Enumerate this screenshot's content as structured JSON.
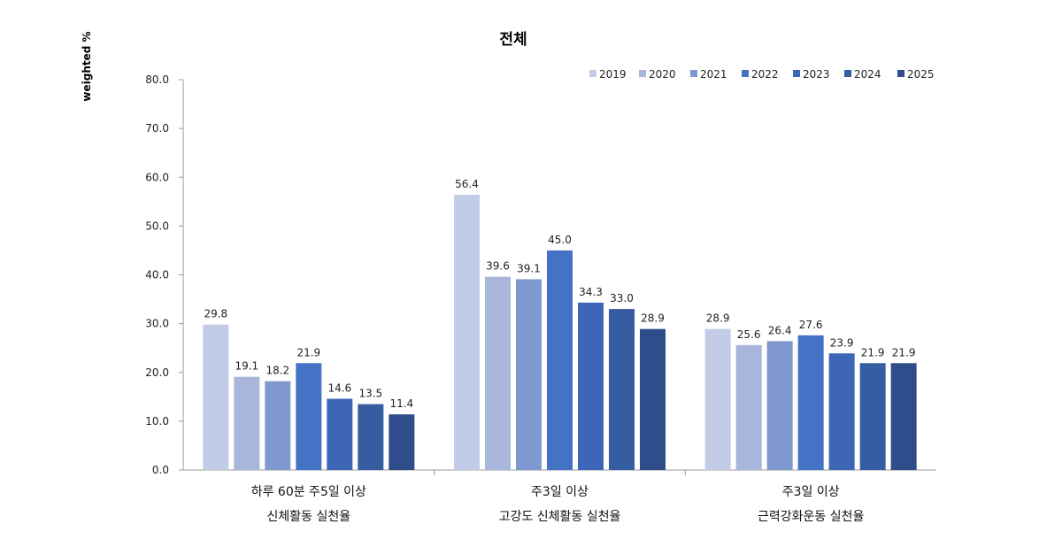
{
  "chart_data": {
    "type": "bar",
    "title": "전체",
    "ylabel": "weighted %",
    "xlabel": "",
    "ylim": [
      0,
      80
    ],
    "yticks": [
      "0.0",
      "10.0",
      "20.0",
      "30.0",
      "40.0",
      "50.0",
      "60.0",
      "70.0",
      "80.0"
    ],
    "grid": false,
    "legend_position": "top-right",
    "categories": [
      [
        "하루 60분 주5일 이상",
        "신체활동 실천율"
      ],
      [
        "주3일 이상",
        "고강도 신체활동 실천율"
      ],
      [
        "주3일 이상",
        "근력강화운동 실천율"
      ]
    ],
    "series": [
      {
        "name": "2019",
        "color": "#c3cce6",
        "values": [
          29.8,
          56.4,
          28.9
        ],
        "labels": [
          "29.8",
          "56.4",
          "28.9"
        ]
      },
      {
        "name": "2020",
        "color": "#a9b6db",
        "values": [
          19.1,
          39.6,
          25.6
        ],
        "labels": [
          "19.1",
          "39.6",
          "25.6"
        ]
      },
      {
        "name": "2021",
        "color": "#8098d0",
        "values": [
          18.2,
          39.1,
          26.4
        ],
        "labels": [
          "18.2",
          "39.1",
          "26.4"
        ]
      },
      {
        "name": "2022",
        "color": "#4472c4",
        "values": [
          21.9,
          45.0,
          27.6
        ],
        "labels": [
          "21.9",
          "45.0",
          "27.6"
        ]
      },
      {
        "name": "2023",
        "color": "#3d66b6",
        "values": [
          14.6,
          34.3,
          23.9
        ],
        "labels": [
          "14.6",
          "34.3",
          "23.9"
        ]
      },
      {
        "name": "2024",
        "color": "#365ca2",
        "values": [
          13.5,
          33.0,
          21.9
        ],
        "labels": [
          "13.5",
          "33.0",
          "21.9"
        ]
      },
      {
        "name": "2025",
        "color": "#2e4d8a",
        "values": [
          11.4,
          28.9,
          21.9
        ],
        "labels": [
          "11.4",
          "28.9",
          "21.9"
        ]
      }
    ]
  }
}
